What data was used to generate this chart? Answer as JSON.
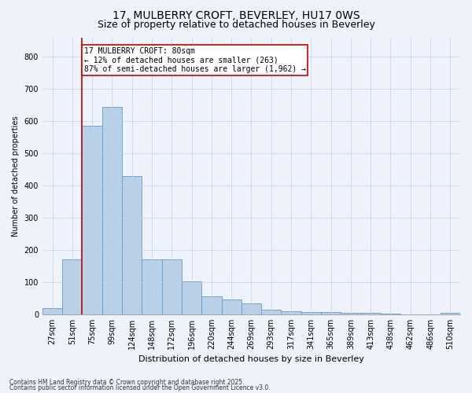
{
  "title1": "17, MULBERRY CROFT, BEVERLEY, HU17 0WS",
  "title2": "Size of property relative to detached houses in Beverley",
  "xlabel": "Distribution of detached houses by size in Beverley",
  "ylabel": "Number of detached properties",
  "categories": [
    "27sqm",
    "51sqm",
    "75sqm",
    "99sqm",
    "124sqm",
    "148sqm",
    "172sqm",
    "196sqm",
    "220sqm",
    "244sqm",
    "269sqm",
    "293sqm",
    "317sqm",
    "341sqm",
    "365sqm",
    "389sqm",
    "413sqm",
    "438sqm",
    "462sqm",
    "486sqm",
    "510sqm"
  ],
  "values": [
    20,
    170,
    585,
    645,
    430,
    170,
    170,
    103,
    55,
    45,
    33,
    15,
    10,
    8,
    8,
    5,
    4,
    2,
    0,
    0,
    5
  ],
  "bar_color": "#b8d0e8",
  "bar_edge_color": "#6699cc",
  "vline_bar_index": 2,
  "vline_color": "#cc0000",
  "annotation_text": "17 MULBERRY CROFT: 80sqm\n← 12% of detached houses are smaller (263)\n87% of semi-detached houses are larger (1,962) →",
  "annotation_box_edge": "#cc0000",
  "ylim": [
    0,
    860
  ],
  "yticks": [
    0,
    100,
    200,
    300,
    400,
    500,
    600,
    700,
    800
  ],
  "footnote1": "Contains HM Land Registry data © Crown copyright and database right 2025.",
  "footnote2": "Contains public sector information licensed under the Open Government Licence v3.0.",
  "bg_color": "#eef2fb",
  "plot_bg_color": "#eef2fb",
  "title1_fontsize": 10,
  "title2_fontsize": 9,
  "axis_fontsize": 7,
  "xlabel_fontsize": 8,
  "ylabel_fontsize": 7,
  "grid_color": "#c8d0e8",
  "footnote_fontsize": 5.5
}
